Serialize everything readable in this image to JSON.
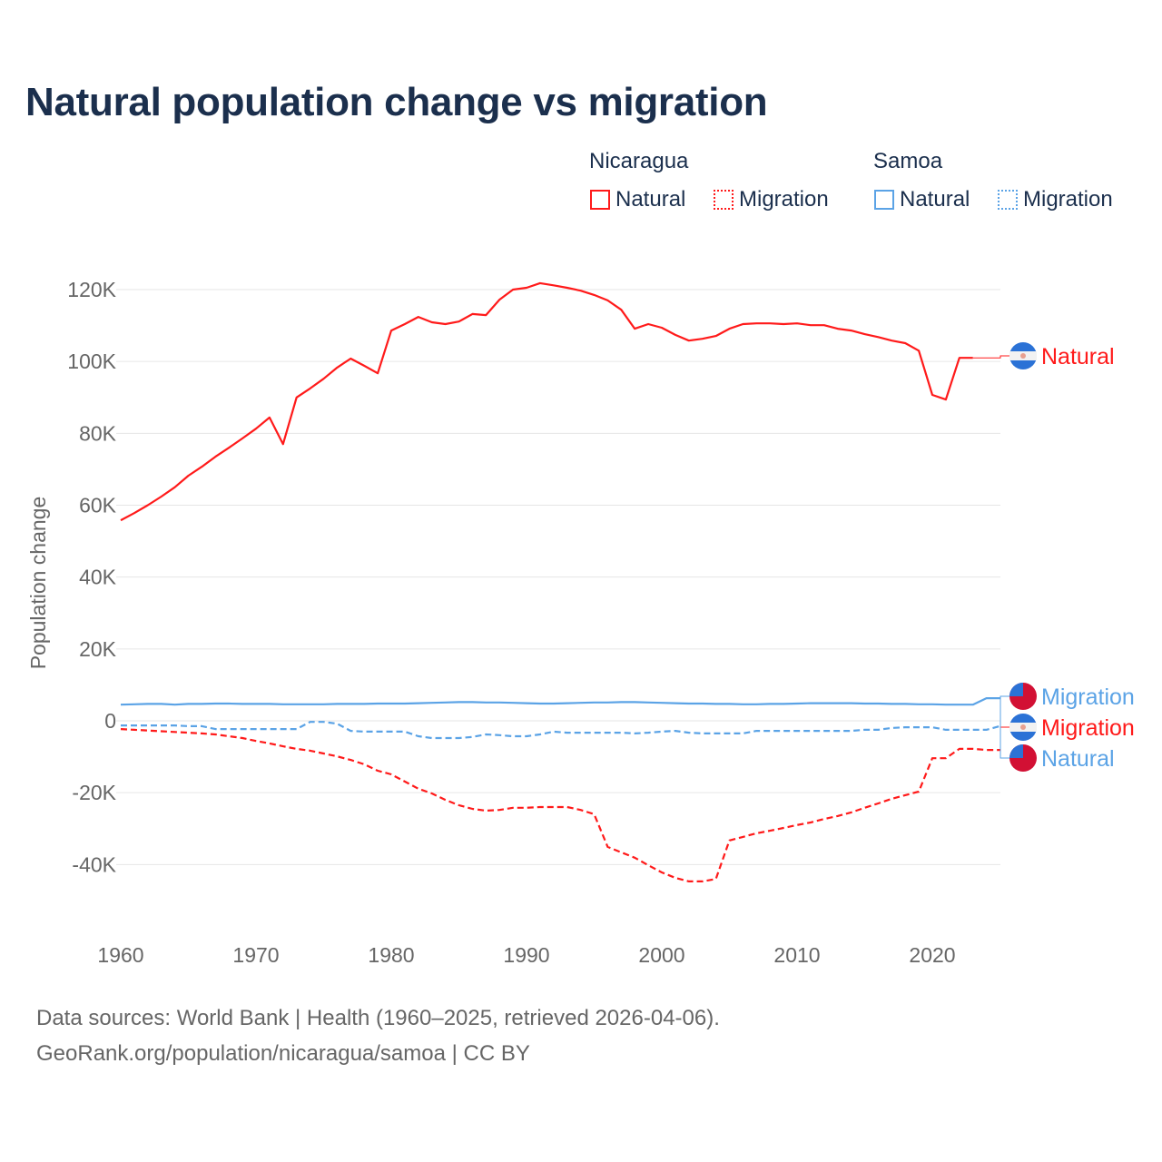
{
  "title": "Natural population change vs migration",
  "legend": {
    "groups": [
      {
        "name": "Nicaragua",
        "items": [
          "Natural",
          "Migration"
        ]
      },
      {
        "name": "Samoa",
        "items": [
          "Natural",
          "Migration"
        ]
      }
    ]
  },
  "footer": {
    "source": "Data sources: World Bank | Health (1960–2025, retrieved 2026-04-06).",
    "url": "GeoRank.org/population/nicaragua/samoa | CC BY"
  },
  "chart_data": {
    "type": "line",
    "title": "Natural population change vs migration",
    "xlabel": "",
    "ylabel": "Population change",
    "xlim": [
      1960,
      2025
    ],
    "ylim": [
      -50000,
      125000
    ],
    "x_ticks": [
      1960,
      1970,
      1980,
      1990,
      2000,
      2010,
      2020
    ],
    "y_ticks": [
      -40000,
      -20000,
      0,
      20000,
      40000,
      60000,
      80000,
      100000,
      120000
    ],
    "y_tick_labels": [
      "-40K",
      "-20K",
      "0",
      "20K",
      "40K",
      "60K",
      "80K",
      "100K",
      "120K"
    ],
    "grid": true,
    "legend_position": "top-right",
    "series": [
      {
        "name": "Nicaragua Natural",
        "label": "Natural",
        "color": "#ff1a1a",
        "dash": false,
        "start": 1960,
        "values": [
          55800,
          57800,
          60000,
          62400,
          65000,
          68200,
          70700,
          73500,
          76000,
          78600,
          81300,
          84400,
          77000,
          90000,
          92500,
          95200,
          98300,
          100800,
          98800,
          96700,
          108600,
          110400,
          112400,
          110900,
          110400,
          111100,
          113200,
          112900,
          117200,
          120000,
          120500,
          121800,
          121200,
          120500,
          119700,
          118500,
          117000,
          114400,
          109100,
          110400,
          109400,
          107400,
          105800,
          106300,
          107100,
          109100,
          110400,
          110600,
          110600,
          110400,
          110600,
          110100,
          110100,
          109100,
          108600,
          107600,
          106800,
          105800,
          105100,
          103000,
          90700,
          89400,
          101000,
          101000
        ]
      },
      {
        "name": "Nicaragua Migration",
        "label": "Migration",
        "color": "#ff1a1a",
        "dash": true,
        "start": 1960,
        "values": [
          -2300,
          -2500,
          -2700,
          -2900,
          -3100,
          -3300,
          -3500,
          -3800,
          -4300,
          -4800,
          -5600,
          -6300,
          -7100,
          -7800,
          -8300,
          -9100,
          -9900,
          -10900,
          -12100,
          -13900,
          -14900,
          -16900,
          -18900,
          -20200,
          -22000,
          -23500,
          -24500,
          -25000,
          -24800,
          -24200,
          -24200,
          -24000,
          -24000,
          -24000,
          -24800,
          -26000,
          -35100,
          -36600,
          -38100,
          -40200,
          -42200,
          -43700,
          -44700,
          -44700,
          -44000,
          -33300,
          -32300,
          -31300,
          -30600,
          -29800,
          -29000,
          -28300,
          -27300,
          -26500,
          -25500,
          -24200,
          -23000,
          -21700,
          -20700,
          -19700,
          -10400,
          -10400,
          -7800,
          -7800,
          -8100,
          -8100
        ]
      },
      {
        "name": "Samoa Natural",
        "label": "Natural",
        "color": "#5ba3e6",
        "dash": false,
        "start": 1960,
        "values": [
          4500,
          4600,
          4700,
          4700,
          4500,
          4700,
          4700,
          4800,
          4800,
          4700,
          4700,
          4700,
          4600,
          4600,
          4600,
          4600,
          4700,
          4700,
          4700,
          4800,
          4800,
          4800,
          4900,
          5000,
          5100,
          5200,
          5200,
          5100,
          5100,
          5000,
          4900,
          4800,
          4800,
          4900,
          5000,
          5100,
          5100,
          5200,
          5200,
          5100,
          5000,
          4900,
          4800,
          4800,
          4700,
          4700,
          4600,
          4600,
          4700,
          4700,
          4800,
          4900,
          4900,
          4900,
          4900,
          4800,
          4800,
          4700,
          4700,
          4600,
          4600,
          4500,
          4500,
          4500,
          6300,
          6300
        ]
      },
      {
        "name": "Samoa Migration",
        "label": "Migration",
        "color": "#5ba3e6",
        "dash": true,
        "start": 1960,
        "values": [
          -1300,
          -1300,
          -1300,
          -1300,
          -1300,
          -1500,
          -1500,
          -2300,
          -2300,
          -2300,
          -2300,
          -2300,
          -2300,
          -2300,
          -300,
          -300,
          -800,
          -2800,
          -3000,
          -3000,
          -3000,
          -3000,
          -4300,
          -4800,
          -4800,
          -4800,
          -4500,
          -3800,
          -4000,
          -4300,
          -4300,
          -3800,
          -3000,
          -3300,
          -3300,
          -3300,
          -3300,
          -3300,
          -3500,
          -3300,
          -3000,
          -2800,
          -3300,
          -3500,
          -3500,
          -3500,
          -3500,
          -2800,
          -2800,
          -2800,
          -2800,
          -2800,
          -2800,
          -2800,
          -2800,
          -2500,
          -2500,
          -2000,
          -1800,
          -1800,
          -1800,
          -2500,
          -2500,
          -2500,
          -2500,
          -1500
        ]
      }
    ]
  }
}
